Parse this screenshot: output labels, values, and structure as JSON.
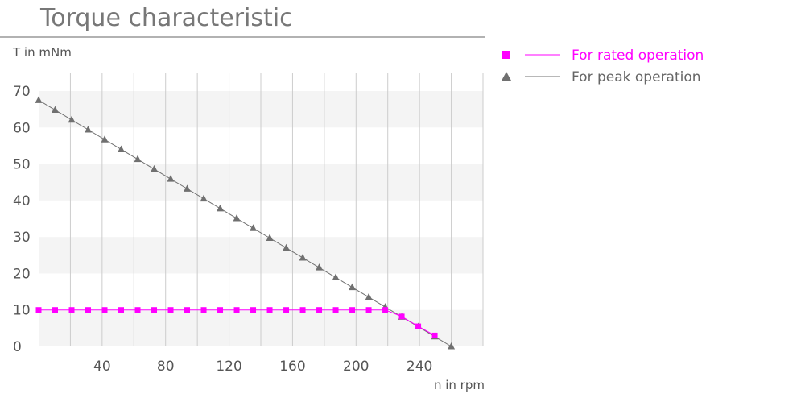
{
  "chart_data": {
    "type": "line",
    "title": "Torque characteristic",
    "ylabel": "T in mNm",
    "xlabel": "n in rpm",
    "xlim": [
      0,
      280
    ],
    "ylim": [
      0,
      70
    ],
    "x_ticks": [
      40,
      80,
      120,
      160,
      200,
      240
    ],
    "y_ticks": [
      0,
      10,
      20,
      30,
      40,
      50,
      60,
      70
    ],
    "grid": "vertical lines every 20 rpm, alternating horizontal bands every 10 mNm",
    "legend_position": "right",
    "series": [
      {
        "name": "For rated operation",
        "color": "#ff00ff",
        "marker": "square",
        "x": [
          0,
          10.4,
          20.8,
          31.2,
          41.6,
          52,
          62.4,
          72.8,
          83.2,
          93.6,
          104,
          114.4,
          124.8,
          135.2,
          145.6,
          156,
          166.4,
          176.8,
          187.2,
          197.6,
          208,
          218.4,
          228.8,
          239.2,
          249.6
        ],
        "values": [
          10,
          10,
          10,
          10,
          10,
          10,
          10,
          10,
          10,
          10,
          10,
          10,
          10,
          10,
          10,
          10,
          10,
          10,
          10,
          10,
          10,
          10,
          8.2,
          5.5,
          3
        ]
      },
      {
        "name": "For peak operation",
        "color": "#707070",
        "marker": "triangle",
        "x": [
          0,
          10.4,
          20.8,
          31.2,
          41.6,
          52,
          62.4,
          72.8,
          83.2,
          93.6,
          104,
          114.4,
          124.8,
          135.2,
          145.6,
          156,
          166.4,
          176.8,
          187.2,
          197.6,
          208,
          218.4,
          228.8,
          239.2,
          249.6,
          260
        ],
        "values": [
          67.5,
          64.8,
          62.1,
          59.4,
          56.7,
          54,
          51.3,
          48.6,
          45.9,
          43.2,
          40.5,
          37.8,
          35.1,
          32.4,
          29.7,
          27,
          24.3,
          21.6,
          18.9,
          16.2,
          13.5,
          10.8,
          8.1,
          5.4,
          2.7,
          0
        ]
      }
    ]
  }
}
